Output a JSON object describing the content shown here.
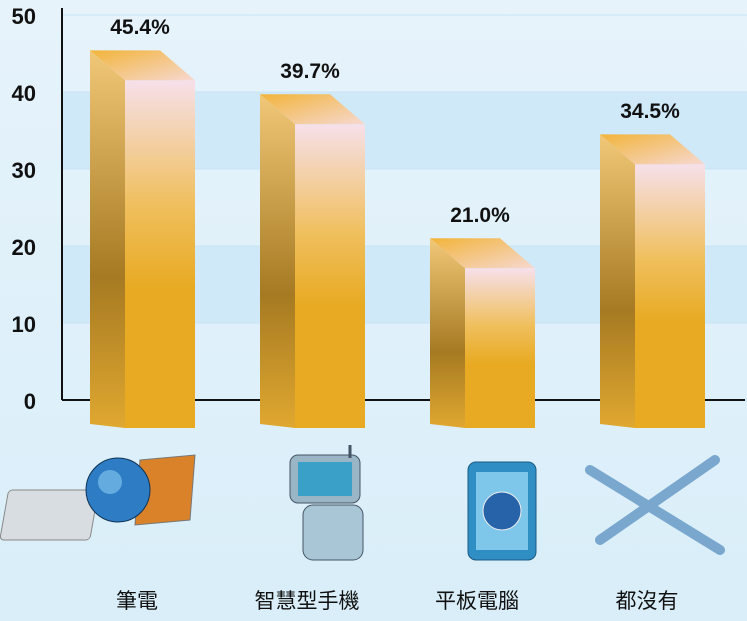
{
  "chart_data": {
    "type": "bar",
    "categories": [
      "筆電",
      "智慧型手機",
      "平板電腦",
      "都沒有"
    ],
    "values": [
      45.4,
      39.7,
      21.0,
      34.5
    ],
    "value_labels": [
      "45.4%",
      "39.7%",
      "21.0%",
      "34.5%"
    ],
    "color": "#e8aa22",
    "ylim": [
      0,
      50
    ],
    "yticks": [
      0,
      10,
      20,
      30,
      40,
      50
    ],
    "grid": true
  }
}
